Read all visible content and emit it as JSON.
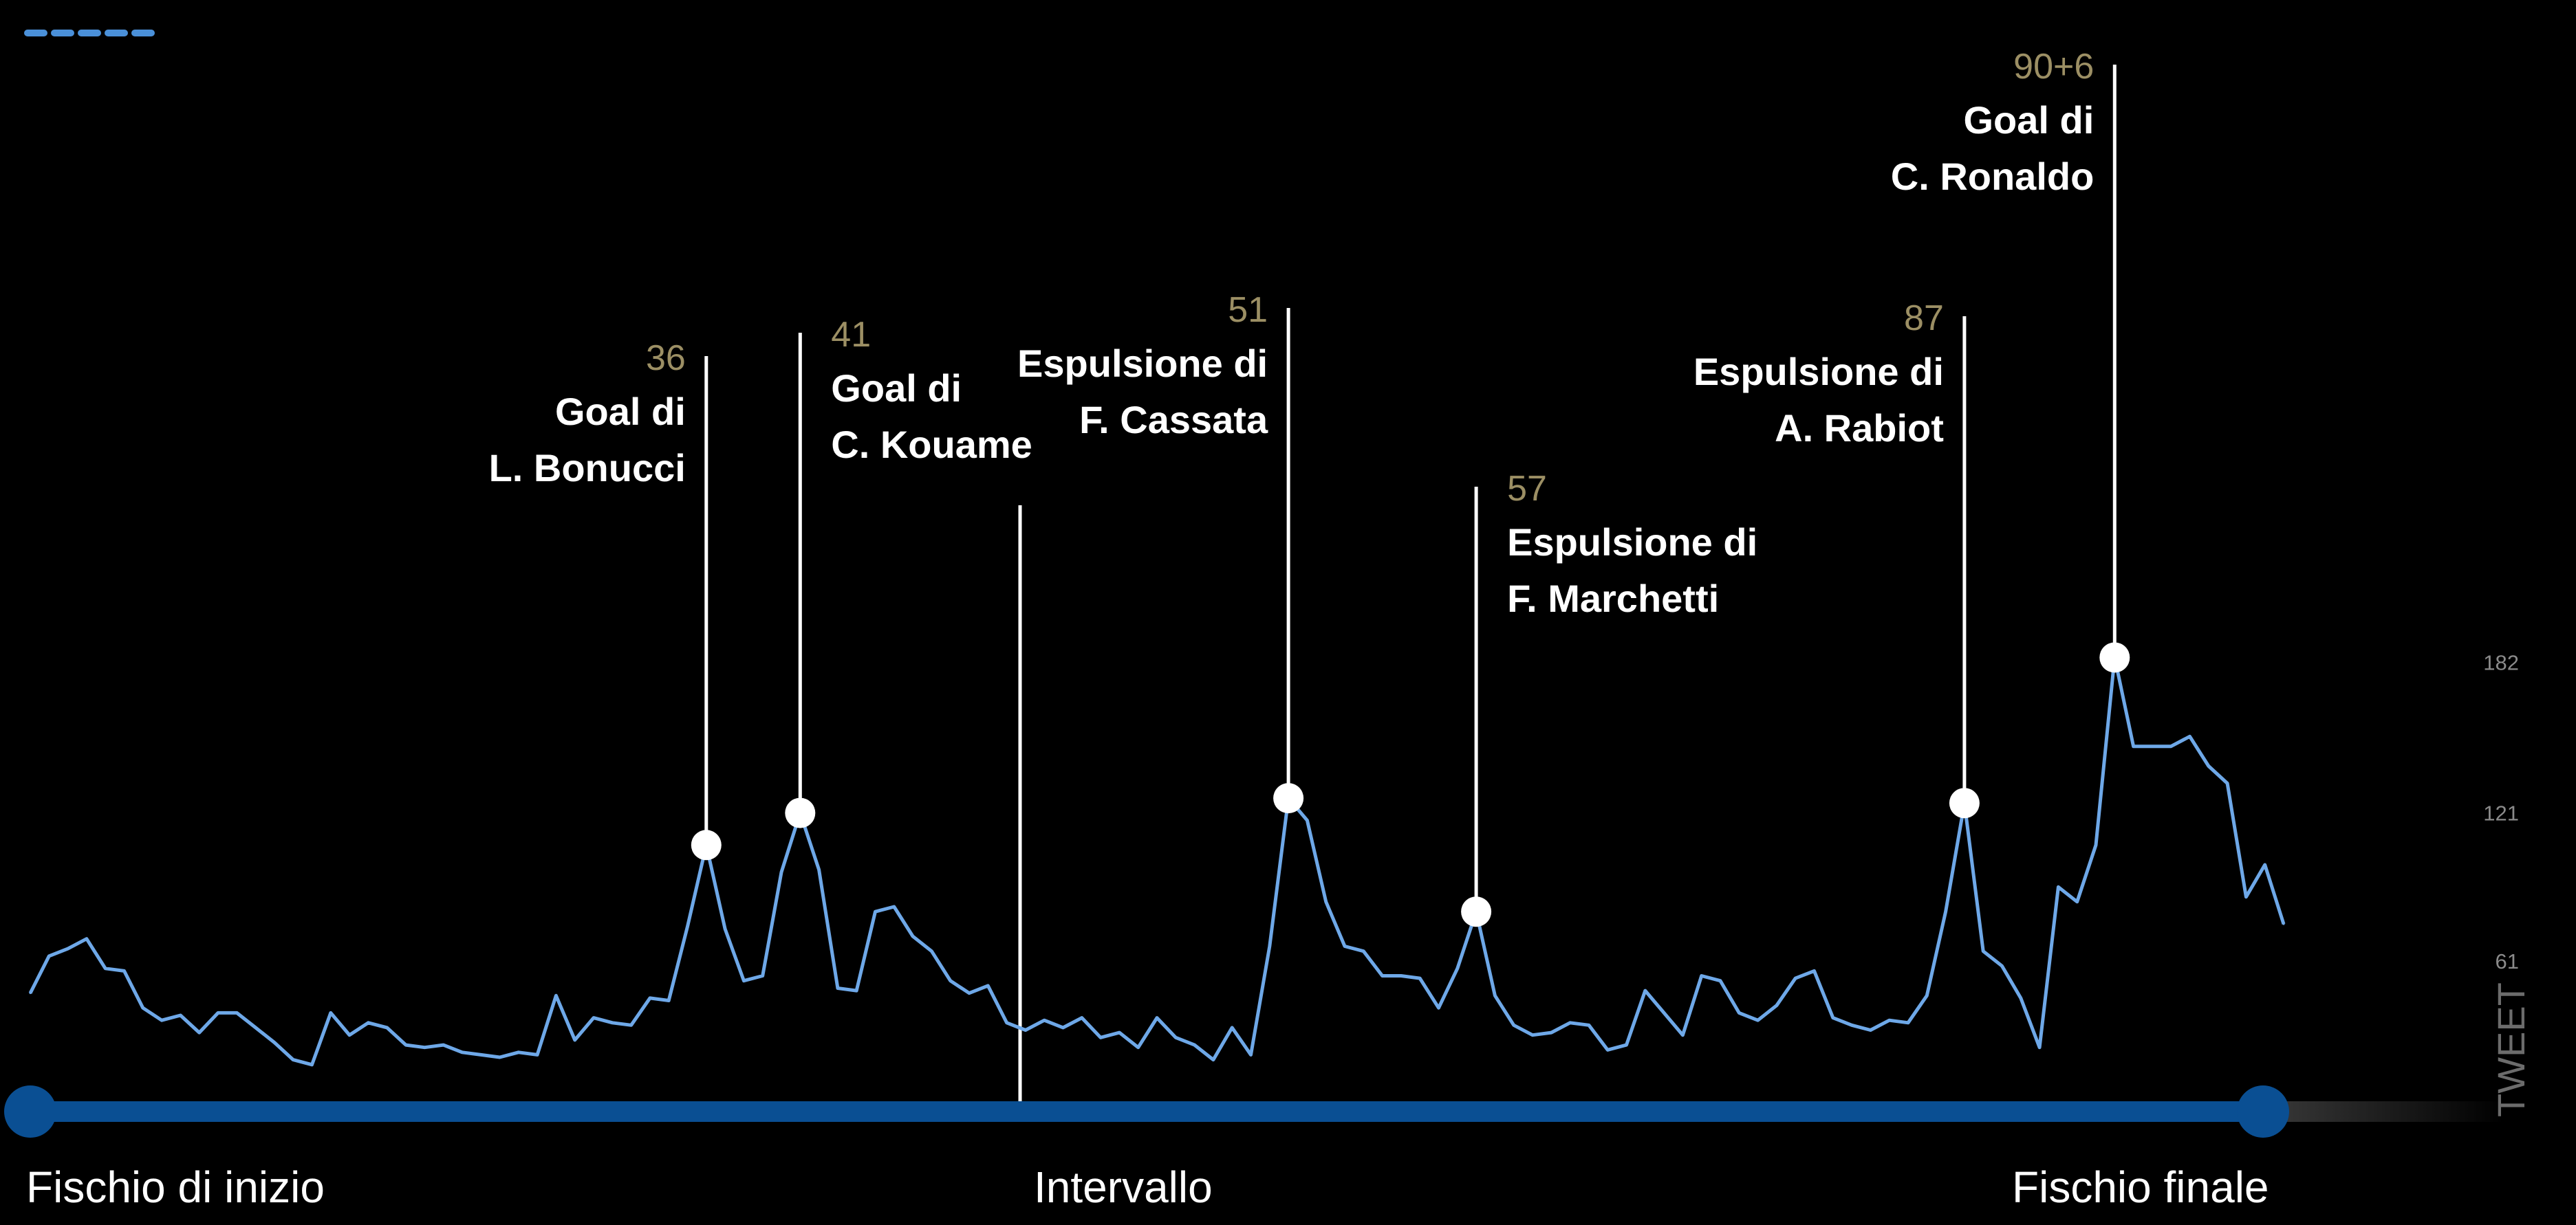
{
  "chart_data": {
    "type": "line",
    "ylabel": "TWEET",
    "y_ticks": [
      61,
      121,
      182
    ],
    "ylim": [
      0,
      240
    ],
    "x_markers": {
      "start": "Fischio di inizio",
      "half": "Intervallo",
      "end": "Fischio finale"
    },
    "series": [
      {
        "values": [
          48,
          63,
          66,
          70,
          58,
          57,
          42,
          37,
          39,
          32,
          40,
          40,
          34,
          28,
          21,
          19,
          40,
          31,
          36,
          34,
          27,
          26,
          27,
          24,
          23,
          22,
          24,
          23,
          47,
          29,
          38,
          36,
          35,
          46,
          45,
          75,
          108,
          74,
          53,
          55,
          97,
          121,
          98,
          50,
          49,
          81,
          83,
          71,
          65,
          53,
          48,
          51,
          36,
          33,
          37,
          34,
          38,
          30,
          32,
          26,
          38,
          30,
          27,
          21,
          34,
          23,
          67,
          127,
          118,
          85,
          67,
          65,
          55,
          55,
          54,
          42,
          58,
          81,
          47,
          35,
          31,
          32,
          36,
          35,
          25,
          27,
          49,
          40,
          31,
          55,
          53,
          40,
          37,
          43,
          54,
          57,
          38,
          35,
          33,
          37,
          36,
          47,
          81,
          125,
          65,
          59,
          46,
          26,
          91,
          85,
          108,
          184,
          148,
          148,
          148,
          152,
          140,
          133,
          87,
          100,
          76
        ]
      }
    ],
    "events": [
      {
        "minute": "36",
        "text": [
          "Goal di",
          "L. Bonucci"
        ]
      },
      {
        "minute": "41",
        "text": [
          "Goal di",
          "C. Kouame"
        ]
      },
      {
        "minute": "51",
        "text": [
          "Espulsione di",
          "F. Cassata"
        ]
      },
      {
        "minute": "57",
        "text": [
          "Espulsione di",
          "F. Marchetti"
        ]
      },
      {
        "minute": "87",
        "text": [
          "Espulsione di",
          "A. Rabiot"
        ]
      },
      {
        "minute": "90+6",
        "text": [
          "Goal di",
          "C. Ronaldo"
        ]
      }
    ],
    "colors": {
      "background": "#000000",
      "line": "#6ea8e8",
      "timeline": "#0a4f93",
      "minute_label": "#9c8f64",
      "event_text": "#ffffff",
      "gridline": "#9a9a9a"
    }
  }
}
